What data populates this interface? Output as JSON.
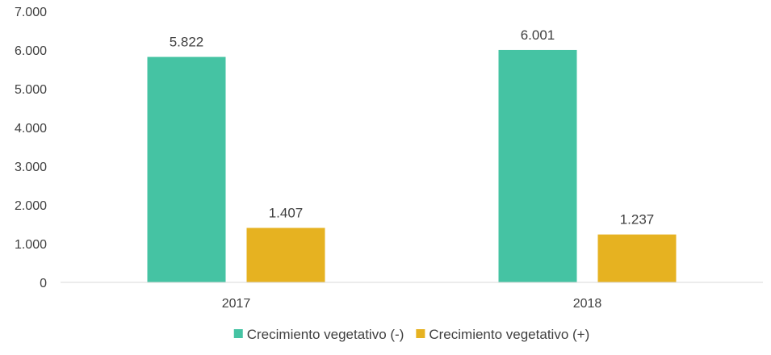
{
  "chart_data": {
    "type": "bar",
    "categories": [
      "2017",
      "2018"
    ],
    "series": [
      {
        "name": "Crecimiento vegetativo (-)",
        "values": [
          5822,
          6001
        ],
        "labels": [
          "5.822",
          "6.001"
        ],
        "color": "#45C3A3"
      },
      {
        "name": "Crecimiento vegetativo (+)",
        "values": [
          1407,
          1237
        ],
        "labels": [
          "1.407",
          "1.237"
        ],
        "color": "#E6B221"
      }
    ],
    "ylim": [
      0,
      7000
    ],
    "yticks": [
      0,
      1000,
      2000,
      3000,
      4000,
      5000,
      6000,
      7000
    ],
    "ytick_labels": [
      "0",
      "1.000",
      "2.000",
      "3.000",
      "4.000",
      "5.000",
      "6.000",
      "7.000"
    ],
    "grid": false,
    "legend_position": "bottom",
    "axis_color": "#D9D9D9",
    "text_color": "#404040"
  }
}
